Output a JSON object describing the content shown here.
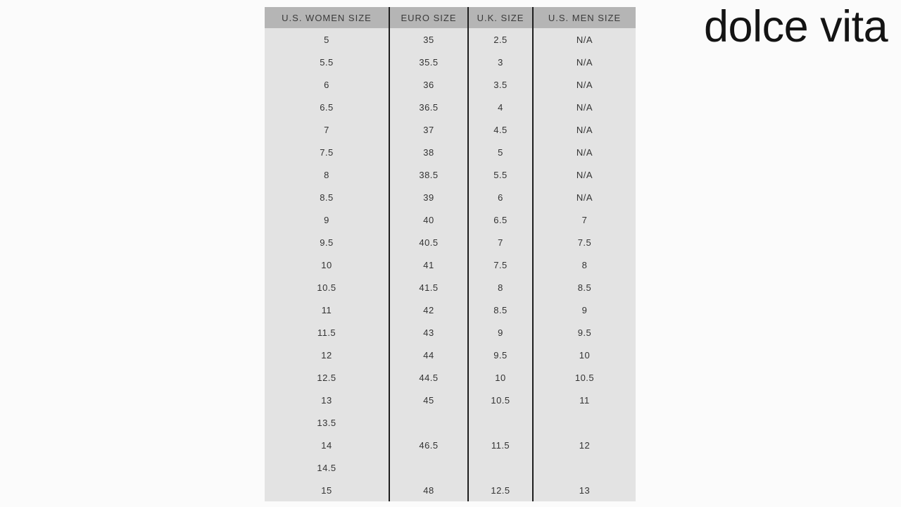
{
  "logo": {
    "text": "dolce vita"
  },
  "colors": {
    "page_background": "#fbfbfb",
    "header_background": "#b5b5b5",
    "body_background": "#e3e3e3",
    "divider": "#1e1e1e",
    "logo_text": "#141414",
    "cell_text": "#333333"
  },
  "chart_data": {
    "type": "table",
    "headers": [
      "U.S. WOMEN SIZE",
      "EURO SIZE",
      "U.K. SIZE",
      "U.S. MEN SIZE"
    ],
    "rows": [
      [
        "5",
        "35",
        "2.5",
        "N/A"
      ],
      [
        "5.5",
        "35.5",
        "3",
        "N/A"
      ],
      [
        "6",
        "36",
        "3.5",
        "N/A"
      ],
      [
        "6.5",
        "36.5",
        "4",
        "N/A"
      ],
      [
        "7",
        "37",
        "4.5",
        "N/A"
      ],
      [
        "7.5",
        "38",
        "5",
        "N/A"
      ],
      [
        "8",
        "38.5",
        "5.5",
        "N/A"
      ],
      [
        "8.5",
        "39",
        "6",
        "N/A"
      ],
      [
        "9",
        "40",
        "6.5",
        "7"
      ],
      [
        "9.5",
        "40.5",
        "7",
        "7.5"
      ],
      [
        "10",
        "41",
        "7.5",
        "8"
      ],
      [
        "10.5",
        "41.5",
        "8",
        "8.5"
      ],
      [
        "11",
        "42",
        "8.5",
        "9"
      ],
      [
        "11.5",
        "43",
        "9",
        "9.5"
      ],
      [
        "12",
        "44",
        "9.5",
        "10"
      ],
      [
        "12.5",
        "44.5",
        "10",
        "10.5"
      ],
      [
        "13",
        "45",
        "10.5",
        "11"
      ],
      [
        "13.5",
        "",
        "",
        ""
      ],
      [
        "14",
        "46.5",
        "11.5",
        "12"
      ],
      [
        "14.5",
        "",
        "",
        ""
      ],
      [
        "15",
        "48",
        "12.5",
        "13"
      ]
    ]
  }
}
